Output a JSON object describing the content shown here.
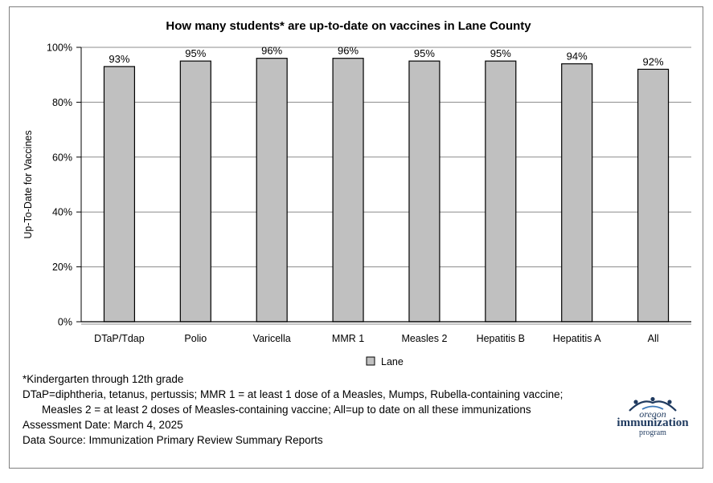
{
  "chart_data": {
    "type": "bar",
    "title": "How many students* are up-to-date on vaccines in Lane County",
    "ylabel": "Up-To-Date for Vaccines",
    "xlabel": "",
    "categories": [
      "DTaP/Tdap",
      "Polio",
      "Varicella",
      "MMR 1",
      "Measles 2",
      "Hepatitis B",
      "Hepatitis A",
      "All"
    ],
    "series": [
      {
        "name": "Lane",
        "values": [
          93,
          95,
          96,
          96,
          95,
          95,
          94,
          92
        ],
        "labels": [
          "93%",
          "95%",
          "96%",
          "96%",
          "95%",
          "95%",
          "94%",
          "92%"
        ]
      }
    ],
    "ylim": [
      0,
      100
    ],
    "yticks": [
      0,
      20,
      40,
      60,
      80,
      100
    ],
    "ytick_labels": [
      "0%",
      "20%",
      "40%",
      "60%",
      "80%",
      "100%"
    ],
    "grid": true,
    "legend_position": "bottom",
    "colors": {
      "bar_fill": "#c0c0c0",
      "bar_stroke": "#000000",
      "grid": "#8c8c8c"
    }
  },
  "footnotes": {
    "line1": "*Kindergarten through 12th grade",
    "line2": "DTaP=diphtheria, tetanus, pertussis; MMR 1 = at least 1 dose of a Measles, Mumps, Rubella-containing vaccine;",
    "line3": "Measles 2 = at least 2 doses of Measles-containing vaccine; All=up to date on all these immunizations",
    "line4": "Assessment Date: March 4, 2025",
    "line5": "Data Source: Immunization Primary Review Summary Reports"
  },
  "logo": {
    "line1": "oregon",
    "line2": "immunization",
    "line3": "program",
    "color": "#1f3a5f"
  }
}
